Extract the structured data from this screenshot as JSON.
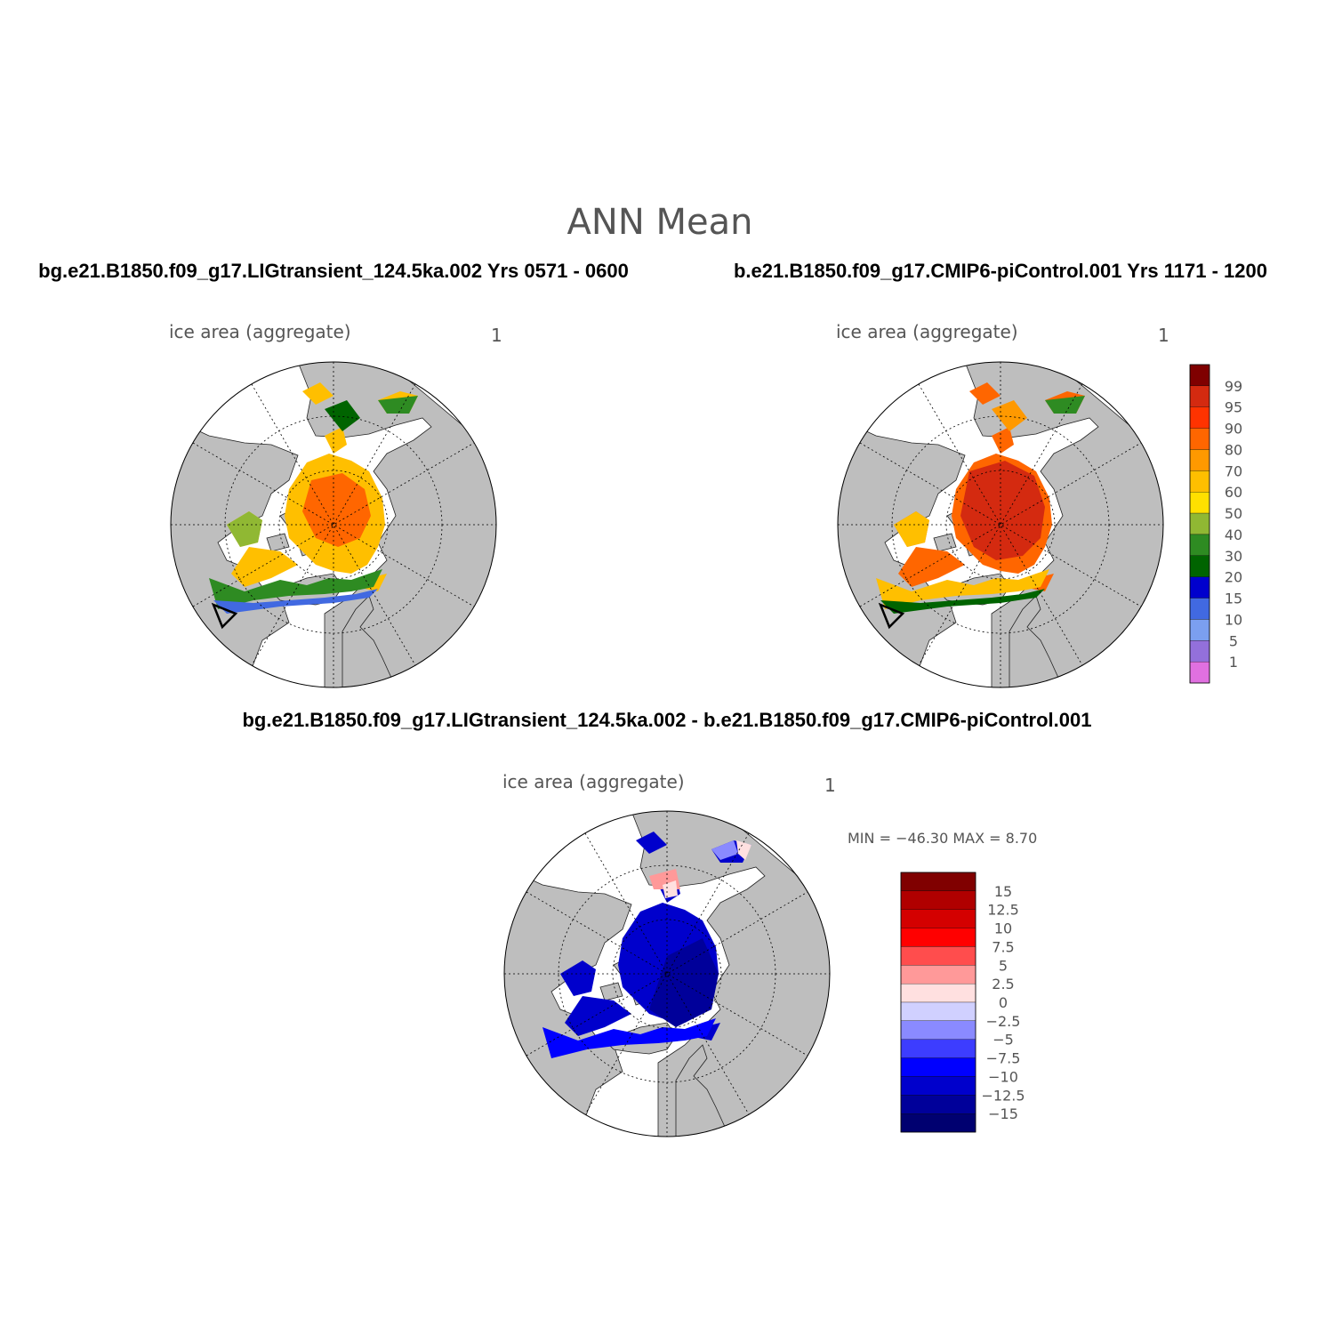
{
  "title": "ANN Mean",
  "panels": {
    "top_left": {
      "heading": "bg.e21.B1850.f09_g17.LIGtransient_124.5ka.002  Yrs 0571 - 0600",
      "variable": "ice area  (aggregate)",
      "units": "1"
    },
    "top_right": {
      "heading": "b.e21.B1850.f09_g17.CMIP6-piControl.001  Yrs 1171 - 1200",
      "variable": "ice area  (aggregate)",
      "units": "1"
    },
    "difference": {
      "heading": "bg.e21.B1850.f09_g17.LIGtransient_124.5ka.002 - b.e21.B1850.f09_g17.CMIP6-piControl.001",
      "variable": "ice area  (aggregate)",
      "units": "1",
      "minmax": "MIN = −46.30 MAX =   8.70"
    }
  },
  "colorbar_abs": {
    "labels": [
      "99",
      "95",
      "90",
      "80",
      "70",
      "60",
      "50",
      "40",
      "30",
      "20",
      "15",
      "10",
      "5",
      "1"
    ],
    "colors": [
      "#7f0000",
      "#d42a10",
      "#ff3300",
      "#ff6600",
      "#ff9900",
      "#ffbf00",
      "#ffe000",
      "#90b833",
      "#2e8b22",
      "#006400",
      "#0000cd",
      "#4169e1",
      "#7b9ff0",
      "#9370db",
      "#e070e0"
    ]
  },
  "colorbar_diff": {
    "labels": [
      "15",
      "12.5",
      "10",
      "7.5",
      "5",
      "2.5",
      "0",
      "−2.5",
      "−5",
      "−7.5",
      "−10",
      "−12.5",
      "−15"
    ],
    "colors": [
      "#800000",
      "#b00000",
      "#d40000",
      "#ff0000",
      "#ff4d4d",
      "#ff9999",
      "#ffe0e0",
      "#d0d0ff",
      "#8a8aff",
      "#3d3dff",
      "#0000ff",
      "#0000cc",
      "#00009a",
      "#000070"
    ]
  },
  "colors": {
    "land": "#bebebe",
    "ocean": "#ffffff"
  }
}
